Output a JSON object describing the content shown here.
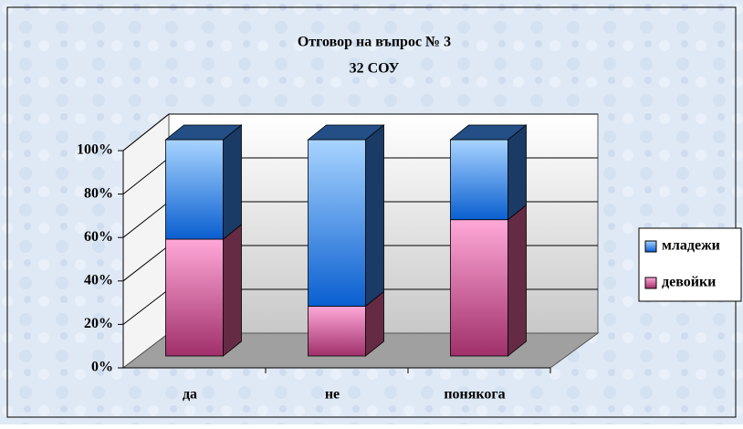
{
  "chart_data": {
    "type": "bar",
    "stacked": true,
    "three_d": true,
    "title": "Отговор на въпрос № 3",
    "subtitle": "32 СОУ",
    "categories": [
      "да",
      "не",
      "понякога"
    ],
    "series": [
      {
        "name": "девойки",
        "color": "#e0609a",
        "values": [
          54,
          23,
          63
        ]
      },
      {
        "name": "младежи",
        "color": "#3a82e0",
        "values": [
          46,
          77,
          37
        ]
      }
    ],
    "ylim": [
      0,
      100
    ],
    "yticks": [
      {
        "value": 0,
        "label": "0%"
      },
      {
        "value": 20,
        "label": "20%"
      },
      {
        "value": 40,
        "label": "40%"
      },
      {
        "value": 60,
        "label": "60%"
      },
      {
        "value": 80,
        "label": "80%"
      },
      {
        "value": 100,
        "label": "100%"
      }
    ],
    "grid": true,
    "legend": "right"
  }
}
